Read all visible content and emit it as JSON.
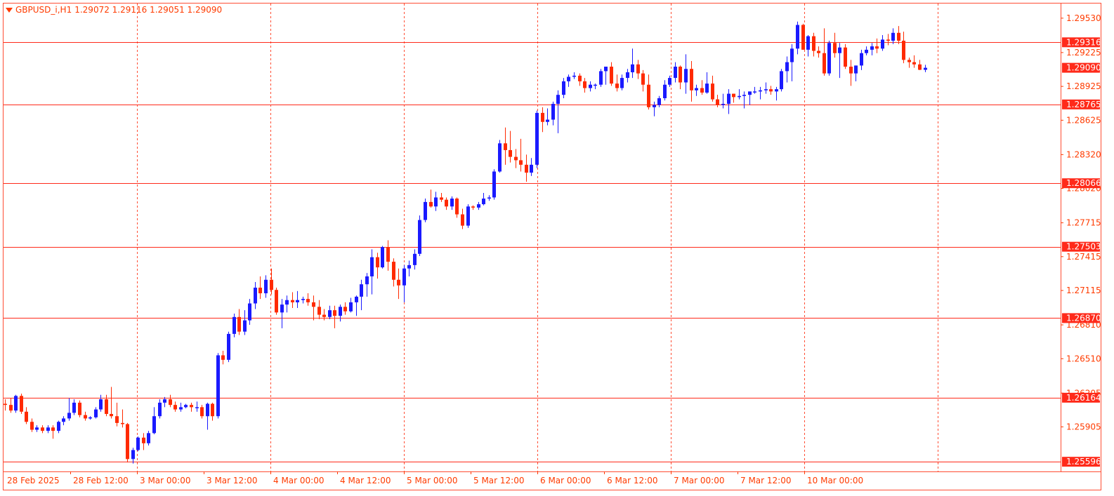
{
  "header": {
    "symbol_label": "GBPUSD_i,H1",
    "ohlc_text": "1.29072 1.29116 1.29051 1.29090",
    "dropdown_icon": "triangle-down-icon"
  },
  "colors": {
    "background": "#ffffff",
    "frame": "#ff4d33",
    "grid_vertical": "#ff4d33",
    "level_line": "#ff2a1a",
    "bull_candle": "#1a1aff",
    "bear_candle": "#ff2a00",
    "axis_text": "#ff3b00",
    "label_bg": "#ff2a1a",
    "label_text": "#ffffff"
  },
  "price_axis": {
    "ticks": [
      "1.29530",
      "1.29225",
      "1.28925",
      "1.28625",
      "1.28320",
      "1.28020",
      "1.27715",
      "1.27415",
      "1.27115",
      "1.26810",
      "1.26510",
      "1.26205",
      "1.25905"
    ]
  },
  "level_labels": [
    "1.29316",
    "1.29090",
    "1.28765",
    "1.28066",
    "1.27503",
    "1.26870",
    "1.26164",
    "1.25596"
  ],
  "time_axis": {
    "labels": [
      "28 Feb 2025",
      "28 Feb 12:00",
      "3 Mar 00:00",
      "3 Mar 12:00",
      "4 Mar 00:00",
      "4 Mar 12:00",
      "5 Mar 00:00",
      "5 Mar 12:00",
      "6 Mar 00:00",
      "6 Mar 12:00",
      "7 Mar 00:00",
      "7 Mar 12:00",
      "10 Mar 00:00"
    ]
  },
  "chart_data": {
    "type": "candlestick",
    "symbol": "GBPUSD_i",
    "timeframe": "H1",
    "y_range": [
      1.2551,
      1.2966
    ],
    "horizontal_levels": [
      1.29316,
      1.28765,
      1.28066,
      1.27503,
      1.2687,
      1.26164,
      1.25596
    ],
    "current_price": 1.2909,
    "candles": [
      [
        1.2611,
        1.2615,
        1.2605,
        1.261
      ],
      [
        1.261,
        1.2616,
        1.2603,
        1.2605
      ],
      [
        1.2605,
        1.2619,
        1.2603,
        1.2618
      ],
      [
        1.2618,
        1.262,
        1.2602,
        1.2604
      ],
      [
        1.2604,
        1.2608,
        1.2593,
        1.2595
      ],
      [
        1.2595,
        1.2598,
        1.2586,
        1.2588
      ],
      [
        1.2588,
        1.2592,
        1.2586,
        1.259
      ],
      [
        1.259,
        1.2592,
        1.2585,
        1.2587
      ],
      [
        1.2587,
        1.2592,
        1.2585,
        1.259
      ],
      [
        1.259,
        1.2592,
        1.258,
        1.2587
      ],
      [
        1.2587,
        1.2596,
        1.2585,
        1.2595
      ],
      [
        1.2595,
        1.26,
        1.2592,
        1.2598
      ],
      [
        1.2598,
        1.2616,
        1.2596,
        1.2603
      ],
      [
        1.2603,
        1.2615,
        1.2601,
        1.2612
      ],
      [
        1.2612,
        1.2614,
        1.2599,
        1.2601
      ],
      [
        1.2601,
        1.2604,
        1.2596,
        1.2598
      ],
      [
        1.2598,
        1.26,
        1.2597,
        1.2599
      ],
      [
        1.2599,
        1.2608,
        1.2598,
        1.2606
      ],
      [
        1.2606,
        1.2619,
        1.2604,
        1.2615
      ],
      [
        1.2615,
        1.2619,
        1.26,
        1.2602
      ],
      [
        1.2602,
        1.2626,
        1.2598,
        1.26
      ],
      [
        1.26,
        1.2612,
        1.2591,
        1.2594
      ],
      [
        1.2594,
        1.2606,
        1.259,
        1.2593
      ],
      [
        1.2593,
        1.2594,
        1.2559,
        1.2562
      ],
      [
        1.2562,
        1.2572,
        1.2558,
        1.257
      ],
      [
        1.257,
        1.2582,
        1.2569,
        1.2581
      ],
      [
        1.2581,
        1.2585,
        1.257,
        1.2576
      ],
      [
        1.2576,
        1.2587,
        1.2574,
        1.2585
      ],
      [
        1.2585,
        1.2608,
        1.2584,
        1.26
      ],
      [
        1.26,
        1.2615,
        1.2598,
        1.2612
      ],
      [
        1.2612,
        1.2617,
        1.2608,
        1.2615
      ],
      [
        1.2615,
        1.2619,
        1.2608,
        1.261
      ],
      [
        1.261,
        1.2613,
        1.2604,
        1.2606
      ],
      [
        1.2606,
        1.2612,
        1.2604,
        1.2608
      ],
      [
        1.2608,
        1.2611,
        1.2607,
        1.261
      ],
      [
        1.261,
        1.2612,
        1.2604,
        1.2608
      ],
      [
        1.2608,
        1.2613,
        1.2604,
        1.2608
      ],
      [
        1.2608,
        1.261,
        1.2598,
        1.26
      ],
      [
        1.26,
        1.2612,
        1.2588,
        1.2611
      ],
      [
        1.2611,
        1.2612,
        1.2596,
        1.26
      ],
      [
        1.26,
        1.2656,
        1.2598,
        1.2654
      ],
      [
        1.2654,
        1.2658,
        1.2646,
        1.265
      ],
      [
        1.265,
        1.2675,
        1.2648,
        1.2673
      ],
      [
        1.2673,
        1.2691,
        1.267,
        1.2688
      ],
      [
        1.2688,
        1.2695,
        1.2672,
        1.2675
      ],
      [
        1.2675,
        1.2694,
        1.2672,
        1.2685
      ],
      [
        1.2685,
        1.2704,
        1.2681,
        1.27
      ],
      [
        1.27,
        1.2719,
        1.2695,
        1.2714
      ],
      [
        1.2714,
        1.2724,
        1.2704,
        1.2709
      ],
      [
        1.2709,
        1.2725,
        1.2705,
        1.2721
      ],
      [
        1.2721,
        1.2731,
        1.2708,
        1.2712
      ],
      [
        1.2712,
        1.2714,
        1.269,
        1.2692
      ],
      [
        1.2692,
        1.2704,
        1.2678,
        1.2699
      ],
      [
        1.2699,
        1.2707,
        1.2692,
        1.2703
      ],
      [
        1.2703,
        1.271,
        1.2696,
        1.2701
      ],
      [
        1.2701,
        1.2711,
        1.2696,
        1.2703
      ],
      [
        1.2703,
        1.2706,
        1.27,
        1.2704
      ],
      [
        1.2704,
        1.2709,
        1.2698,
        1.2701
      ],
      [
        1.2701,
        1.2707,
        1.2685,
        1.2697
      ],
      [
        1.2697,
        1.2703,
        1.2686,
        1.269
      ],
      [
        1.269,
        1.2695,
        1.2685,
        1.2688
      ],
      [
        1.2688,
        1.2698,
        1.2686,
        1.2694
      ],
      [
        1.2694,
        1.2698,
        1.2678,
        1.2689
      ],
      [
        1.2689,
        1.2699,
        1.2684,
        1.2697
      ],
      [
        1.2697,
        1.2701,
        1.269,
        1.2693
      ],
      [
        1.2693,
        1.2705,
        1.2692,
        1.2701
      ],
      [
        1.2701,
        1.2707,
        1.2689,
        1.2706
      ],
      [
        1.2706,
        1.2721,
        1.2694,
        1.2717
      ],
      [
        1.2717,
        1.2727,
        1.2706,
        1.2724
      ],
      [
        1.2724,
        1.2748,
        1.2708,
        1.2741
      ],
      [
        1.2741,
        1.2745,
        1.2722,
        1.2732
      ],
      [
        1.2732,
        1.2751,
        1.2731,
        1.275
      ],
      [
        1.275,
        1.2756,
        1.2729,
        1.2737
      ],
      [
        1.2737,
        1.274,
        1.2715,
        1.2721
      ],
      [
        1.2721,
        1.2731,
        1.2704,
        1.2716
      ],
      [
        1.2716,
        1.2734,
        1.2701,
        1.2731
      ],
      [
        1.2731,
        1.2738,
        1.2724,
        1.2734
      ],
      [
        1.2734,
        1.2748,
        1.273,
        1.2744
      ],
      [
        1.2744,
        1.2778,
        1.2742,
        1.2774
      ],
      [
        1.2774,
        1.2793,
        1.2772,
        1.279
      ],
      [
        1.279,
        1.2801,
        1.2785,
        1.2786
      ],
      [
        1.2786,
        1.2799,
        1.2782,
        1.2794
      ],
      [
        1.2794,
        1.2798,
        1.279,
        1.2792
      ],
      [
        1.2792,
        1.2794,
        1.2783,
        1.2786
      ],
      [
        1.2786,
        1.2795,
        1.2783,
        1.2793
      ],
      [
        1.2793,
        1.2794,
        1.2776,
        1.2779
      ],
      [
        1.2779,
        1.2784,
        1.2766,
        1.2769
      ],
      [
        1.2769,
        1.2788,
        1.2767,
        1.2786
      ],
      [
        1.2786,
        1.2787,
        1.2783,
        1.2785
      ],
      [
        1.2785,
        1.279,
        1.2783,
        1.2788
      ],
      [
        1.2788,
        1.2798,
        1.2787,
        1.2793
      ],
      [
        1.2793,
        1.2796,
        1.2791,
        1.2794
      ],
      [
        1.2794,
        1.2819,
        1.2792,
        1.2817
      ],
      [
        1.2817,
        1.2845,
        1.2816,
        1.2842
      ],
      [
        1.2842,
        1.2856,
        1.2823,
        1.2836
      ],
      [
        1.2836,
        1.2853,
        1.2825,
        1.283
      ],
      [
        1.283,
        1.2837,
        1.282,
        1.2827
      ],
      [
        1.2827,
        1.2846,
        1.2817,
        1.2823
      ],
      [
        1.2823,
        1.2832,
        1.2808,
        1.2816
      ],
      [
        1.2816,
        1.2829,
        1.2813,
        1.2823
      ],
      [
        1.2823,
        1.2871,
        1.282,
        1.2869
      ],
      [
        1.2869,
        1.2874,
        1.2852,
        1.2861
      ],
      [
        1.2861,
        1.2873,
        1.2858,
        1.2863
      ],
      [
        1.2863,
        1.2879,
        1.2858,
        1.2877
      ],
      [
        1.2877,
        1.2889,
        1.2851,
        1.2885
      ],
      [
        1.2885,
        1.29,
        1.2882,
        1.2897
      ],
      [
        1.2897,
        1.2903,
        1.2892,
        1.2901
      ],
      [
        1.2901,
        1.2905,
        1.2899,
        1.2902
      ],
      [
        1.2902,
        1.2904,
        1.2893,
        1.2897
      ],
      [
        1.2897,
        1.29,
        1.2887,
        1.2891
      ],
      [
        1.2891,
        1.2897,
        1.2888,
        1.2894
      ],
      [
        1.2894,
        1.2895,
        1.289,
        1.2894
      ],
      [
        1.2894,
        1.2908,
        1.2892,
        1.2906
      ],
      [
        1.2906,
        1.291,
        1.2894,
        1.291
      ],
      [
        1.291,
        1.2914,
        1.2893,
        1.2895
      ],
      [
        1.2895,
        1.2903,
        1.2888,
        1.2891
      ],
      [
        1.2891,
        1.2903,
        1.2889,
        1.29
      ],
      [
        1.29,
        1.2908,
        1.2896,
        1.2905
      ],
      [
        1.2905,
        1.2926,
        1.29,
        1.2912
      ],
      [
        1.2912,
        1.2916,
        1.2899,
        1.2904
      ],
      [
        1.2904,
        1.2907,
        1.2888,
        1.2894
      ],
      [
        1.2894,
        1.2903,
        1.2872,
        1.2874
      ],
      [
        1.2874,
        1.2879,
        1.2866,
        1.2876
      ],
      [
        1.2876,
        1.2884,
        1.2874,
        1.2882
      ],
      [
        1.2882,
        1.2898,
        1.288,
        1.2894
      ],
      [
        1.2894,
        1.2902,
        1.2892,
        1.29
      ],
      [
        1.29,
        1.2914,
        1.2896,
        1.291
      ],
      [
        1.291,
        1.2911,
        1.289,
        1.2896
      ],
      [
        1.2896,
        1.2921,
        1.2886,
        1.2908
      ],
      [
        1.2908,
        1.2915,
        1.2879,
        1.2889
      ],
      [
        1.2889,
        1.2894,
        1.2884,
        1.2891
      ],
      [
        1.2891,
        1.2898,
        1.2885,
        1.2887
      ],
      [
        1.2887,
        1.2905,
        1.2886,
        1.2895
      ],
      [
        1.2895,
        1.2902,
        1.2879,
        1.2881
      ],
      [
        1.2881,
        1.2885,
        1.2874,
        1.2876
      ],
      [
        1.2876,
        1.2886,
        1.2873,
        1.2877
      ],
      [
        1.2877,
        1.289,
        1.2868,
        1.2886
      ],
      [
        1.2886,
        1.2886,
        1.2878,
        1.2883
      ],
      [
        1.2883,
        1.289,
        1.2881,
        1.2884
      ],
      [
        1.2884,
        1.2888,
        1.2873,
        1.2885
      ],
      [
        1.2885,
        1.2888,
        1.2876,
        1.2888
      ],
      [
        1.2888,
        1.2892,
        1.2886,
        1.2888
      ],
      [
        1.2888,
        1.2892,
        1.2881,
        1.2889
      ],
      [
        1.2889,
        1.2896,
        1.2886,
        1.289
      ],
      [
        1.289,
        1.2893,
        1.2885,
        1.2888
      ],
      [
        1.2888,
        1.2892,
        1.288,
        1.289
      ],
      [
        1.289,
        1.2908,
        1.2888,
        1.2906
      ],
      [
        1.2906,
        1.2919,
        1.2896,
        1.2914
      ],
      [
        1.2914,
        1.293,
        1.2897,
        1.2926
      ],
      [
        1.2926,
        1.295,
        1.2921,
        1.2947
      ],
      [
        1.2947,
        1.2948,
        1.2925,
        1.2925
      ],
      [
        1.2925,
        1.2938,
        1.2919,
        1.2937
      ],
      [
        1.2937,
        1.294,
        1.2919,
        1.2924
      ],
      [
        1.2924,
        1.2928,
        1.2918,
        1.2922
      ],
      [
        1.2922,
        1.2944,
        1.2902,
        1.2904
      ],
      [
        1.2904,
        1.2933,
        1.2902,
        1.2931
      ],
      [
        1.2931,
        1.294,
        1.2918,
        1.2922
      ],
      [
        1.2922,
        1.2931,
        1.29,
        1.2927
      ],
      [
        1.2927,
        1.293,
        1.2908,
        1.291
      ],
      [
        1.291,
        1.2916,
        1.2893,
        1.2904
      ],
      [
        1.2904,
        1.2911,
        1.2897,
        1.2911
      ],
      [
        1.2911,
        1.2925,
        1.2907,
        1.2922
      ],
      [
        1.2922,
        1.2928,
        1.292,
        1.2925
      ],
      [
        1.2925,
        1.2931,
        1.292,
        1.2928
      ],
      [
        1.2928,
        1.2935,
        1.2922,
        1.2926
      ],
      [
        1.2926,
        1.2938,
        1.2924,
        1.2934
      ],
      [
        1.2934,
        1.2939,
        1.2929,
        1.2933
      ],
      [
        1.2933,
        1.2944,
        1.293,
        1.294
      ],
      [
        1.294,
        1.2946,
        1.293,
        1.2933
      ],
      [
        1.2933,
        1.2941,
        1.2913,
        1.2916
      ],
      [
        1.2916,
        1.2918,
        1.2909,
        1.2914
      ],
      [
        1.2914,
        1.292,
        1.2909,
        1.2912
      ],
      [
        1.2912,
        1.2916,
        1.2907,
        1.29072
      ],
      [
        1.29072,
        1.29116,
        1.29051,
        1.2909
      ]
    ]
  }
}
